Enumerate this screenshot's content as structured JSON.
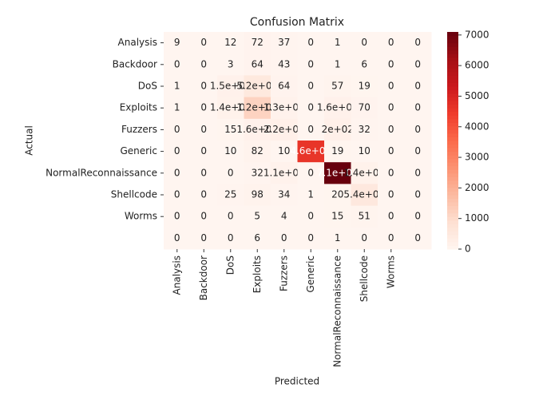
{
  "chart_data": {
    "type": "heatmap",
    "title": "Confusion Matrix",
    "xlabel": "Predicted",
    "ylabel": "Actual",
    "x_categories": [
      "Analysis",
      "Backdoor",
      "DoS",
      "Exploits",
      "Fuzzers",
      "Generic",
      "NormalReconnaissance",
      "Shellcode",
      "Worms",
      null
    ],
    "y_categories": [
      "Analysis",
      "Backdoor",
      "DoS",
      "Exploits",
      "Fuzzers",
      "Generic",
      "NormalReconnaissance",
      "Shellcode",
      "Worms",
      null
    ],
    "values": [
      [
        9,
        0,
        12,
        72,
        37,
        0,
        1,
        0,
        0,
        0
      ],
      [
        0,
        0,
        3,
        64,
        43,
        0,
        1,
        6,
        0,
        0
      ],
      [
        1,
        0,
        150,
        520,
        64,
        0,
        57,
        19,
        0,
        0
      ],
      [
        1,
        0,
        140,
        1200,
        130,
        0,
        160,
        70,
        0,
        0
      ],
      [
        0,
        0,
        15,
        160,
        220,
        0,
        200,
        32,
        0,
        0
      ],
      [
        0,
        0,
        10,
        82,
        10,
        4600,
        19,
        10,
        0,
        0
      ],
      [
        0,
        0,
        0,
        32,
        110,
        0,
        7100,
        140,
        0,
        0
      ],
      [
        0,
        0,
        25,
        98,
        34,
        1,
        20,
        540,
        0,
        0
      ],
      [
        0,
        0,
        0,
        5,
        4,
        0,
        15,
        51,
        0,
        0
      ],
      [
        0,
        0,
        0,
        6,
        0,
        0,
        1,
        0,
        0,
        0
      ]
    ],
    "value_labels": [
      [
        "9",
        "0",
        "12",
        "72",
        "37",
        "0",
        "1",
        "0",
        "0",
        "0"
      ],
      [
        "0",
        "0",
        "3",
        "64",
        "43",
        "0",
        "1",
        "6",
        "0",
        "0"
      ],
      [
        "1",
        "0",
        "1.5e+02",
        "5.2e+02",
        "64",
        "0",
        "57",
        "19",
        "0",
        "0"
      ],
      [
        "1",
        "0",
        "1.4e+02",
        "1.2e+03",
        "1.3e+02",
        "0",
        "1.6e+02",
        "70",
        "0",
        "0"
      ],
      [
        "0",
        "0",
        "15",
        "1.6e+02",
        "2.2e+02",
        "0",
        "2e+02",
        "32",
        "0",
        "0"
      ],
      [
        "0",
        "0",
        "10",
        "82",
        "10",
        "4.6e+03",
        "19",
        "10",
        "0",
        "0"
      ],
      [
        "0",
        "0",
        "0",
        "32",
        "1.1e+02",
        "0",
        "7.1e+03",
        "1.4e+02",
        "0",
        "0"
      ],
      [
        "0",
        "0",
        "25",
        "98",
        "34",
        "1",
        "20",
        "5.4e+02",
        "0",
        "0"
      ],
      [
        "0",
        "0",
        "0",
        "5",
        "4",
        "0",
        "15",
        "51",
        "0",
        "0"
      ],
      [
        "0",
        "0",
        "0",
        "6",
        "0",
        "0",
        "1",
        "0",
        "0",
        "0"
      ]
    ],
    "zlim": [
      0,
      7100
    ],
    "zticks": [
      0,
      1000,
      2000,
      3000,
      4000,
      5000,
      6000,
      7000
    ],
    "colorscale": [
      "#fff5f0",
      "#fee0d2",
      "#fcbba1",
      "#fc9272",
      "#fb6a4a",
      "#ef3b2c",
      "#cb181d",
      "#a50f15",
      "#67000d"
    ]
  }
}
